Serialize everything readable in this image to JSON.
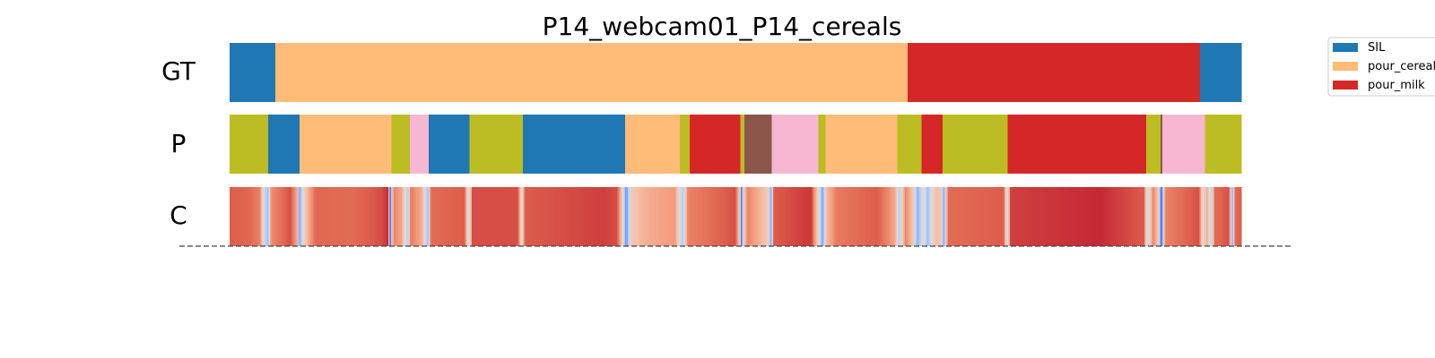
{
  "chart_data": {
    "type": "heatmap",
    "title": "P14_webcam01_P14_cereals",
    "x_domain": [
      0,
      1
    ],
    "rows": [
      {
        "label": "GT",
        "segments": [
          {
            "start": 0.0,
            "end": 0.045,
            "class": "SIL"
          },
          {
            "start": 0.045,
            "end": 0.67,
            "class": "pour_cereals"
          },
          {
            "start": 0.67,
            "end": 0.959,
            "class": "pour_milk"
          },
          {
            "start": 0.959,
            "end": 1.0,
            "class": "SIL"
          }
        ]
      },
      {
        "label": "P",
        "segments": [
          {
            "start": 0.0,
            "end": 0.038,
            "color": "#bcbd22"
          },
          {
            "start": 0.038,
            "end": 0.069,
            "color": "#1f77b4"
          },
          {
            "start": 0.069,
            "end": 0.16,
            "color": "#ffbb78"
          },
          {
            "start": 0.16,
            "end": 0.178,
            "color": "#bcbd22"
          },
          {
            "start": 0.178,
            "end": 0.197,
            "color": "#f7b6d2"
          },
          {
            "start": 0.197,
            "end": 0.237,
            "color": "#1f77b4"
          },
          {
            "start": 0.237,
            "end": 0.29,
            "color": "#bcbd22"
          },
          {
            "start": 0.29,
            "end": 0.391,
            "color": "#1f77b4"
          },
          {
            "start": 0.391,
            "end": 0.445,
            "color": "#ffbb78"
          },
          {
            "start": 0.445,
            "end": 0.455,
            "color": "#bcbd22"
          },
          {
            "start": 0.455,
            "end": 0.505,
            "color": "#d62728"
          },
          {
            "start": 0.505,
            "end": 0.509,
            "color": "#bcbd22"
          },
          {
            "start": 0.509,
            "end": 0.536,
            "color": "#8c564b"
          },
          {
            "start": 0.536,
            "end": 0.582,
            "color": "#f7b6d2"
          },
          {
            "start": 0.582,
            "end": 0.589,
            "color": "#bcbd22"
          },
          {
            "start": 0.589,
            "end": 0.66,
            "color": "#ffbb78"
          },
          {
            "start": 0.66,
            "end": 0.684,
            "color": "#bcbd22"
          },
          {
            "start": 0.684,
            "end": 0.705,
            "color": "#d62728"
          },
          {
            "start": 0.705,
            "end": 0.769,
            "color": "#bcbd22"
          },
          {
            "start": 0.769,
            "end": 0.906,
            "color": "#d62728"
          },
          {
            "start": 0.906,
            "end": 0.92,
            "color": "#bcbd22"
          },
          {
            "start": 0.92,
            "end": 0.922,
            "color": "#8c564b"
          },
          {
            "start": 0.922,
            "end": 0.964,
            "color": "#f7b6d2"
          },
          {
            "start": 0.964,
            "end": 1.0,
            "color": "#bcbd22"
          }
        ]
      },
      {
        "label": "C",
        "colormap": "coolwarm",
        "confidence": [
          [
            0.0,
            0.88
          ],
          [
            0.02,
            0.86
          ],
          [
            0.03,
            0.8
          ],
          [
            0.034,
            0.45
          ],
          [
            0.038,
            0.3
          ],
          [
            0.041,
            0.78
          ],
          [
            0.06,
            0.9
          ],
          [
            0.067,
            0.7
          ],
          [
            0.069,
            0.15
          ],
          [
            0.072,
            0.5
          ],
          [
            0.078,
            0.7
          ],
          [
            0.085,
            0.86
          ],
          [
            0.12,
            0.85
          ],
          [
            0.15,
            0.9
          ],
          [
            0.157,
            0.95
          ],
          [
            0.159,
            0.05
          ],
          [
            0.162,
            0.8
          ],
          [
            0.17,
            0.72
          ],
          [
            0.176,
            0.35
          ],
          [
            0.179,
            0.82
          ],
          [
            0.19,
            0.7
          ],
          [
            0.196,
            0.3
          ],
          [
            0.199,
            0.85
          ],
          [
            0.232,
            0.88
          ],
          [
            0.237,
            0.4
          ],
          [
            0.24,
            0.9
          ],
          [
            0.285,
            0.9
          ],
          [
            0.289,
            0.45
          ],
          [
            0.292,
            0.88
          ],
          [
            0.37,
            0.92
          ],
          [
            0.383,
            0.9
          ],
          [
            0.388,
            0.6
          ],
          [
            0.392,
            0.15
          ],
          [
            0.397,
            0.6
          ],
          [
            0.41,
            0.68
          ],
          [
            0.425,
            0.72
          ],
          [
            0.44,
            0.75
          ],
          [
            0.448,
            0.35
          ],
          [
            0.453,
            0.8
          ],
          [
            0.5,
            0.9
          ],
          [
            0.504,
            0.6
          ],
          [
            0.506,
            0.1
          ],
          [
            0.508,
            0.55
          ],
          [
            0.512,
            0.8
          ],
          [
            0.532,
            0.6
          ],
          [
            0.535,
            0.2
          ],
          [
            0.538,
            0.88
          ],
          [
            0.575,
            0.93
          ],
          [
            0.583,
            0.5
          ],
          [
            0.586,
            0.2
          ],
          [
            0.59,
            0.65
          ],
          [
            0.6,
            0.82
          ],
          [
            0.64,
            0.88
          ],
          [
            0.652,
            0.78
          ],
          [
            0.658,
            0.7
          ],
          [
            0.662,
            0.35
          ],
          [
            0.668,
            0.8
          ],
          [
            0.676,
            0.6
          ],
          [
            0.68,
            0.25
          ],
          [
            0.686,
            0.55
          ],
          [
            0.69,
            0.3
          ],
          [
            0.694,
            0.5
          ],
          [
            0.698,
            0.65
          ],
          [
            0.703,
            0.62
          ],
          [
            0.706,
            0.2
          ],
          [
            0.71,
            0.85
          ],
          [
            0.765,
            0.88
          ],
          [
            0.769,
            0.4
          ],
          [
            0.772,
            0.92
          ],
          [
            0.86,
            0.95
          ],
          [
            0.904,
            0.88
          ],
          [
            0.907,
            0.4
          ],
          [
            0.913,
            0.8
          ],
          [
            0.918,
            0.6
          ],
          [
            0.921,
            0.05
          ],
          [
            0.925,
            0.8
          ],
          [
            0.958,
            0.9
          ],
          [
            0.962,
            0.5
          ],
          [
            0.966,
            0.7
          ],
          [
            0.97,
            0.4
          ],
          [
            0.974,
            0.85
          ],
          [
            0.988,
            0.9
          ],
          [
            0.991,
            0.2
          ],
          [
            0.994,
            0.85
          ],
          [
            1.0,
            0.88
          ]
        ]
      }
    ],
    "legend": {
      "placement": "upper-right outside",
      "entries": [
        {
          "label": "SIL",
          "color": "#1f77b4"
        },
        {
          "label": "pour_cereals",
          "color": "#ffbb78"
        },
        {
          "label": "pour_milk",
          "color": "#d62728"
        }
      ]
    },
    "colors": {
      "SIL": "#1f77b4",
      "pour_cereals": "#ffbb78",
      "pour_milk": "#d62728"
    }
  }
}
